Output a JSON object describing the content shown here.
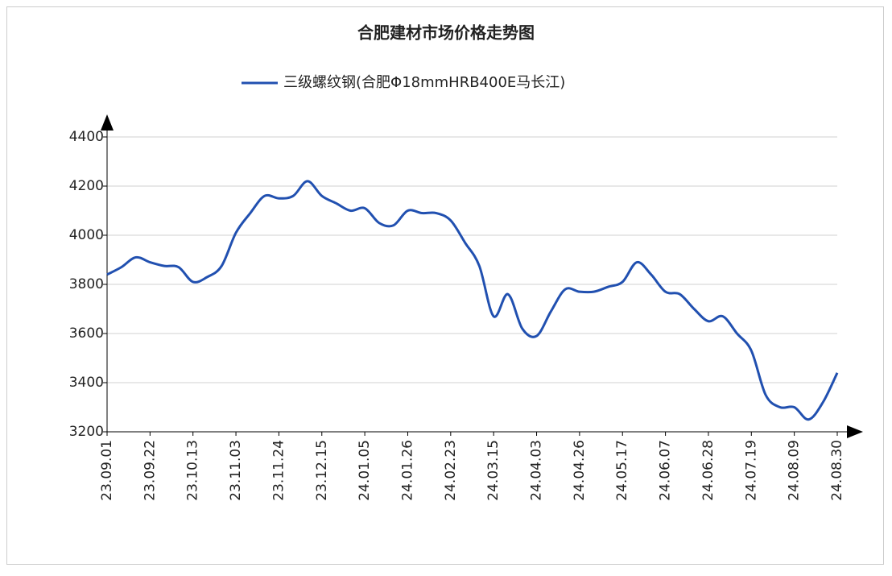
{
  "chart_data": {
    "type": "line",
    "title": "合肥建材市场价格走势图",
    "categories": [
      "23.09.01",
      null,
      null,
      "23.09.22",
      null,
      null,
      "23.10.13",
      null,
      null,
      "23.11.03",
      null,
      null,
      "23.11.24",
      null,
      null,
      "23.12.15",
      null,
      null,
      "24.01.05",
      null,
      null,
      "24.01.26",
      null,
      null,
      "24.02.23",
      null,
      null,
      "24.03.15",
      null,
      null,
      "24.04.03",
      null,
      null,
      "24.04.26",
      null,
      null,
      "24.05.17",
      null,
      null,
      "24.06.07",
      null,
      null,
      "24.06.28",
      null,
      null,
      "24.07.19",
      null,
      null,
      "24.08.09",
      null,
      null,
      "24.08.30"
    ],
    "series": [
      {
        "name": "三级螺纹钢(合肥Φ18mmHRB400E马长江)",
        "color": "#2150b0",
        "values": [
          3840,
          3870,
          3910,
          3890,
          3875,
          3870,
          3810,
          3830,
          3875,
          4010,
          4090,
          4160,
          4150,
          4160,
          4220,
          4160,
          4130,
          4100,
          4110,
          4050,
          4040,
          4100,
          4090,
          4090,
          4060,
          3970,
          3875,
          3670,
          3760,
          3620,
          3590,
          3690,
          3780,
          3770,
          3770,
          3790,
          3810,
          3890,
          3840,
          3770,
          3760,
          3700,
          3650,
          3670,
          3600,
          3530,
          3350,
          3300,
          3300,
          3250,
          3320,
          3440
        ]
      }
    ],
    "ylim": [
      3200,
      4400
    ],
    "yticks": [
      3200,
      3400,
      3600,
      3800,
      4000,
      4200,
      4400
    ],
    "grid": true
  }
}
